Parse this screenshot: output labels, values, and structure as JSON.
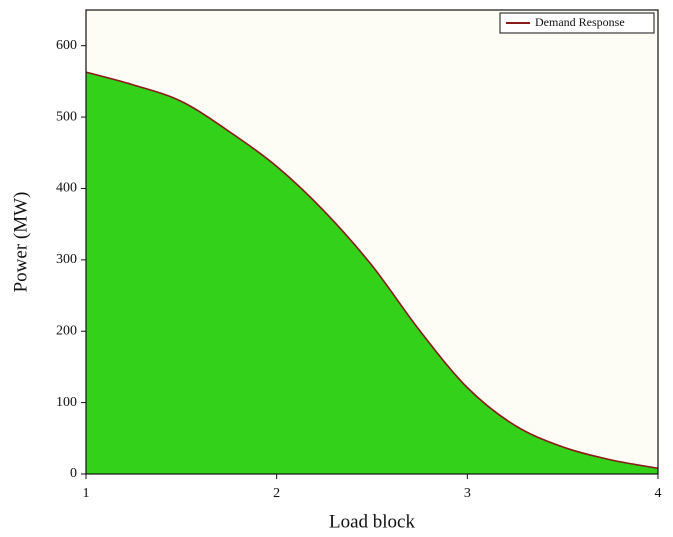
{
  "chart_data": {
    "type": "area",
    "xlabel": "Load block",
    "ylabel": "Power (MW)",
    "x": [
      1,
      1.25,
      1.5,
      1.75,
      2,
      2.25,
      2.5,
      2.75,
      3,
      3.25,
      3.5,
      3.75,
      4
    ],
    "series": [
      {
        "name": "Demand Response",
        "color": "#8b1a1a",
        "fill": "#33d11a",
        "values": [
          563,
          545,
          522,
          480,
          431,
          368,
          292,
          201,
          121,
          68,
          38,
          20,
          8
        ]
      }
    ],
    "xlim": [
      1,
      4
    ],
    "xticks": [
      1,
      2,
      3,
      4
    ],
    "ylim": [
      0,
      650
    ],
    "yticks": [
      0,
      100,
      200,
      300,
      400,
      500,
      600
    ],
    "legend": "upper right"
  }
}
